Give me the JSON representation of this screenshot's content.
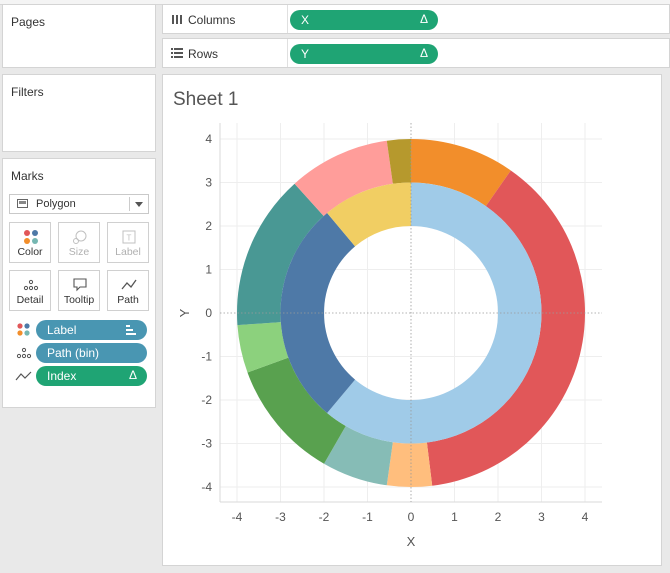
{
  "cards": {
    "pages_title": "Pages",
    "filters_title": "Filters",
    "marks_title": "Marks"
  },
  "marks": {
    "mark_type": "Polygon",
    "buttons": {
      "color": "Color",
      "size": "Size",
      "label": "Label",
      "detail": "Detail",
      "tooltip": "Tooltip",
      "path": "Path"
    },
    "fields": [
      {
        "label": "Label",
        "icon": "color-dots-icon",
        "indicator": "sort-bars-icon"
      },
      {
        "label": "Path (bin)",
        "icon": "detail-dots-icon",
        "indicator": ""
      },
      {
        "label": "Index",
        "icon": "path-line-icon",
        "indicator": "Δ"
      }
    ]
  },
  "shelves": {
    "columns_label": "Columns",
    "columns_pill": "X",
    "rows_label": "Rows",
    "rows_pill": "Y",
    "pill_indicator": "Δ"
  },
  "sheet_title": "Sheet 1",
  "chart_data": {
    "type": "donut",
    "xlabel": "X",
    "ylabel": "Y",
    "xlim": [
      -4.4,
      4.4
    ],
    "ylim": [
      -4.4,
      4.4
    ],
    "x_ticks": [
      "-4",
      "-3",
      "-2",
      "-1",
      "0",
      "1",
      "2",
      "3",
      "4"
    ],
    "y_ticks": [
      "4",
      "3",
      "2",
      "1",
      "0",
      "-1",
      "-2",
      "-3",
      "-4"
    ],
    "grid": true,
    "zero_lines": true,
    "outer_ring": {
      "inner_radius": 3.0,
      "outer_radius": 4.0,
      "segments": [
        {
          "start_deg": 0,
          "end_deg": 35,
          "color": "#f28e2b"
        },
        {
          "start_deg": 35,
          "end_deg": 173,
          "color": "#e15759"
        },
        {
          "start_deg": 173,
          "end_deg": 188,
          "color": "#ffbe7d"
        },
        {
          "start_deg": 188,
          "end_deg": 210,
          "color": "#86bcb6"
        },
        {
          "start_deg": 210,
          "end_deg": 250,
          "color": "#59a14f"
        },
        {
          "start_deg": 250,
          "end_deg": 266,
          "color": "#8cd17d"
        },
        {
          "start_deg": 266,
          "end_deg": 318,
          "color": "#499894"
        },
        {
          "start_deg": 318,
          "end_deg": 352,
          "color": "#ff9d9a"
        },
        {
          "start_deg": 352,
          "end_deg": 360,
          "color": "#b6992d"
        }
      ]
    },
    "inner_ring": {
      "inner_radius": 2.0,
      "outer_radius": 3.0,
      "segments": [
        {
          "start_deg": 0,
          "end_deg": 220,
          "color": "#a0cbe8"
        },
        {
          "start_deg": 220,
          "end_deg": 320,
          "color": "#4e79a7"
        },
        {
          "start_deg": 320,
          "end_deg": 360,
          "color": "#f1ce63"
        }
      ]
    }
  }
}
